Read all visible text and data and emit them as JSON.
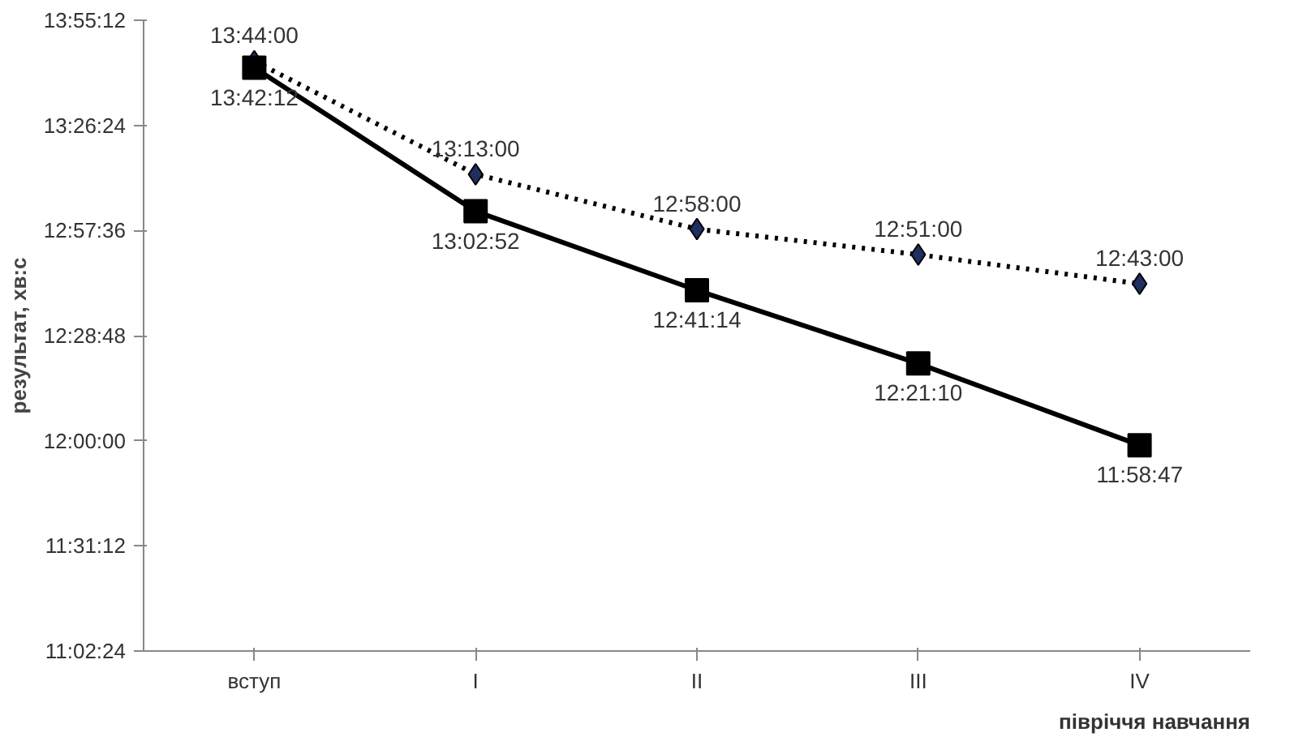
{
  "chart_data": {
    "type": "line",
    "xlabel": "півріччя навчання",
    "ylabel": "результат, хв:с",
    "categories": [
      "вступ",
      "I",
      "II",
      "III",
      "IV"
    ],
    "ylim": [
      11.04,
      13.92
    ],
    "yticks": [
      {
        "value": 11.04,
        "label": "11:02:24"
      },
      {
        "value": 11.52,
        "label": "11:31:12"
      },
      {
        "value": 12.0,
        "label": "12:00:00"
      },
      {
        "value": 12.48,
        "label": "12:28:48"
      },
      {
        "value": 12.96,
        "label": "12:57:36"
      },
      {
        "value": 13.44,
        "label": "13:26:24"
      },
      {
        "value": 13.92,
        "label": "13:55:12"
      }
    ],
    "grid": false,
    "series": [
      {
        "color": "#000000",
        "line_style": "dotted",
        "marker": "diamond",
        "values": [
          13.7333,
          13.2167,
          12.9667,
          12.85,
          12.7167
        ],
        "value_labels": [
          "13:44:00",
          "13:13:00",
          "12:58:00",
          "12:51:00",
          "12:43:00"
        ]
      },
      {
        "color": "#000000",
        "line_style": "solid",
        "marker": "square",
        "values": [
          13.7033,
          13.0478,
          12.6872,
          12.3528,
          11.9797
        ],
        "value_labels": [
          "13:42:12",
          "13:02:52",
          "12:41:14",
          "12:21:10",
          "11:58:47"
        ]
      }
    ]
  }
}
